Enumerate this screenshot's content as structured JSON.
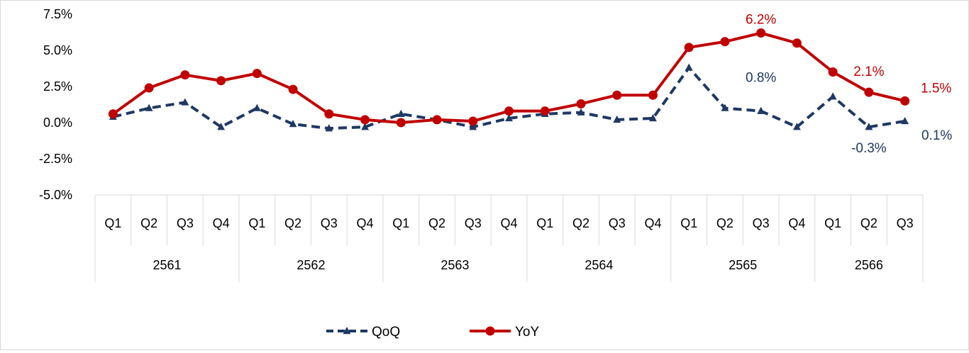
{
  "chart_data": {
    "type": "line",
    "title": "",
    "xlabel": "",
    "ylabel": "",
    "ylim": [
      -5.0,
      7.5
    ],
    "yticks": [
      "7.5%",
      "5.0%",
      "2.5%",
      "0.0%",
      "-2.5%",
      "-5.0%"
    ],
    "ytick_values": [
      7.5,
      5.0,
      2.5,
      0.0,
      -2.5,
      -5.0
    ],
    "grid": false,
    "legend_position": "bottom",
    "years": [
      "2561",
      "2562",
      "2563",
      "2564",
      "2565",
      "2566"
    ],
    "year_quarter_counts": [
      4,
      4,
      4,
      4,
      4,
      3
    ],
    "categories": [
      "Q1",
      "Q2",
      "Q3",
      "Q4",
      "Q1",
      "Q2",
      "Q3",
      "Q4",
      "Q1",
      "Q2",
      "Q3",
      "Q4",
      "Q1",
      "Q2",
      "Q3",
      "Q4",
      "Q1",
      "Q2",
      "Q3",
      "Q4",
      "Q1",
      "Q2",
      "Q3"
    ],
    "series": [
      {
        "name": "QoQ",
        "color": "#1f3864",
        "style": "dashed",
        "marker": "triangle",
        "values": [
          0.4,
          1.0,
          1.4,
          -0.3,
          1.0,
          -0.1,
          -0.4,
          -0.3,
          0.6,
          0.2,
          -0.3,
          0.3,
          0.6,
          0.7,
          0.2,
          0.3,
          3.8,
          1.0,
          0.8,
          -0.3,
          1.8,
          -0.3,
          0.1
        ],
        "labels": [
          {
            "index": 18,
            "text": "0.8%"
          },
          {
            "index": 21,
            "text": "-0.3%"
          },
          {
            "index": 22,
            "text": "0.1%"
          }
        ]
      },
      {
        "name": "YoY",
        "color": "#c00000",
        "style": "solid",
        "marker": "circle",
        "values": [
          0.6,
          2.4,
          3.3,
          2.9,
          3.4,
          2.3,
          0.6,
          0.2,
          0.0,
          0.2,
          0.1,
          0.8,
          0.8,
          1.3,
          1.9,
          1.9,
          5.2,
          5.6,
          6.2,
          5.5,
          3.5,
          2.1,
          1.5
        ],
        "labels": [
          {
            "index": 18,
            "text": "6.2%"
          },
          {
            "index": 21,
            "text": "2.1%"
          },
          {
            "index": 22,
            "text": "1.5%"
          }
        ]
      }
    ]
  }
}
